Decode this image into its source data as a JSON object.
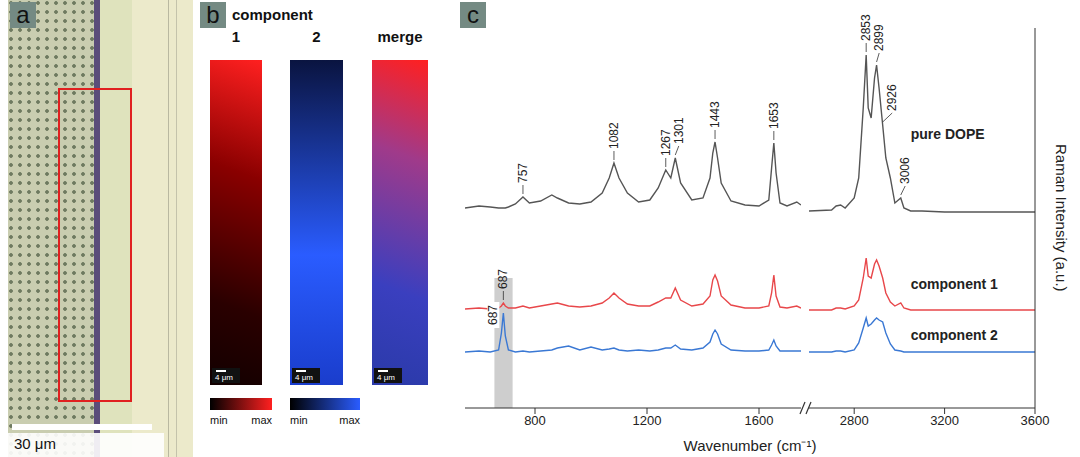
{
  "panel_a": {
    "letter": "a",
    "scale_bar": "30 μm"
  },
  "panel_b": {
    "letter": "b",
    "heading": "component",
    "maps": [
      {
        "label": "1",
        "color": "#ff2020"
      },
      {
        "label": "2",
        "color": "#2a5cff"
      },
      {
        "label": "merge"
      }
    ],
    "scale_bar": "4 μm",
    "colorbars": [
      {
        "color": "#ff2020",
        "min": "min",
        "max": "max"
      },
      {
        "color": "#2a5cff",
        "min": "min",
        "max": "max"
      }
    ]
  },
  "chart_data": {
    "letter": "c",
    "type": "line",
    "x_label": "Wavenumber (cm⁻¹)",
    "y_label": "Raman Intensity (a.u.)",
    "x_segments": [
      {
        "xlim": [
          550,
          1750
        ],
        "xticks": [
          800,
          1200,
          1600
        ]
      },
      {
        "xlim": [
          2600,
          3600
        ],
        "xticks": [
          2800,
          3200,
          3600
        ]
      }
    ],
    "ylim": [
      0,
      3.8
    ],
    "yticks": [],
    "tick_labels": "x",
    "x": [
      550,
      600,
      640,
      670,
      680,
      687,
      694,
      705,
      730,
      757,
      780,
      820,
      860,
      880,
      920,
      960,
      1000,
      1040,
      1065,
      1082,
      1100,
      1130,
      1170,
      1210,
      1240,
      1267,
      1285,
      1301,
      1320,
      1360,
      1400,
      1425,
      1435,
      1443,
      1452,
      1465,
      1500,
      1550,
      1600,
      1635,
      1645,
      1653,
      1661,
      1675,
      1700,
      1735,
      1750,
      2600,
      2700,
      2720,
      2740,
      2760,
      2800,
      2820,
      2840,
      2853,
      2862,
      2875,
      2890,
      2899,
      2910,
      2926,
      2940,
      2960,
      2980,
      3006,
      3020,
      3050,
      3100,
      3200,
      3300,
      3400,
      3500,
      3600
    ],
    "series": [
      {
        "name": "pure DOPE",
        "color": "#555555",
        "values": [
          2.0,
          2.02,
          2.01,
          2.0,
          2.0,
          2.0,
          2.0,
          2.01,
          2.04,
          2.11,
          2.05,
          2.07,
          2.13,
          2.1,
          2.05,
          2.04,
          2.06,
          2.15,
          2.3,
          2.45,
          2.3,
          2.15,
          2.06,
          2.08,
          2.2,
          2.38,
          2.3,
          2.5,
          2.25,
          2.08,
          2.1,
          2.3,
          2.55,
          2.66,
          2.5,
          2.25,
          2.07,
          2.03,
          2.02,
          2.08,
          2.4,
          2.65,
          2.35,
          2.05,
          2.02,
          2.06,
          2.03,
          1.97,
          1.98,
          2.02,
          2.03,
          2.0,
          2.1,
          2.3,
          3.0,
          3.53,
          3.0,
          2.9,
          3.3,
          3.43,
          3.2,
          2.83,
          2.5,
          2.3,
          2.05,
          2.1,
          2.0,
          1.97,
          1.97,
          1.96,
          1.96,
          1.96,
          1.96,
          1.96
        ]
      },
      {
        "name": "component 1",
        "color": "#e8474a",
        "values": [
          0.99,
          1.0,
          0.99,
          1.0,
          1.02,
          1.05,
          1.02,
          1.0,
          1.0,
          1.02,
          1.0,
          1.02,
          1.04,
          1.05,
          1.02,
          1.01,
          1.02,
          1.05,
          1.1,
          1.15,
          1.1,
          1.04,
          1.02,
          1.02,
          1.06,
          1.1,
          1.1,
          1.2,
          1.08,
          1.02,
          1.04,
          1.12,
          1.28,
          1.33,
          1.27,
          1.12,
          1.03,
          1.0,
          1.0,
          1.02,
          1.15,
          1.33,
          1.12,
          1.01,
          1.0,
          1.02,
          1.0,
          0.98,
          0.98,
          1.0,
          1.0,
          0.99,
          1.02,
          1.08,
          1.3,
          1.5,
          1.32,
          1.3,
          1.44,
          1.48,
          1.42,
          1.3,
          1.15,
          1.06,
          1.02,
          1.05,
          1.0,
          0.98,
          0.98,
          0.98,
          0.98,
          0.98,
          0.98,
          0.98
        ]
      },
      {
        "name": "component 2",
        "color": "#3a78d4",
        "values": [
          0.56,
          0.57,
          0.56,
          0.58,
          0.75,
          0.95,
          0.72,
          0.58,
          0.56,
          0.57,
          0.56,
          0.57,
          0.58,
          0.6,
          0.62,
          0.58,
          0.61,
          0.58,
          0.59,
          0.6,
          0.58,
          0.57,
          0.58,
          0.57,
          0.58,
          0.6,
          0.6,
          0.63,
          0.59,
          0.58,
          0.6,
          0.66,
          0.74,
          0.78,
          0.74,
          0.64,
          0.58,
          0.57,
          0.57,
          0.58,
          0.63,
          0.68,
          0.62,
          0.57,
          0.57,
          0.57,
          0.57,
          0.56,
          0.56,
          0.57,
          0.57,
          0.56,
          0.58,
          0.65,
          0.8,
          0.9,
          0.82,
          0.84,
          0.88,
          0.9,
          0.88,
          0.86,
          0.75,
          0.64,
          0.58,
          0.57,
          0.56,
          0.56,
          0.56,
          0.56,
          0.56,
          0.56,
          0.56,
          0.56
        ]
      }
    ],
    "annotations": [
      {
        "text": "757",
        "x": 757,
        "series": "pure DOPE"
      },
      {
        "text": "1082",
        "x": 1082,
        "series": "pure DOPE"
      },
      {
        "text": "1267",
        "x": 1267,
        "series": "pure DOPE"
      },
      {
        "text": "1301",
        "x": 1301,
        "series": "pure DOPE"
      },
      {
        "text": "1443",
        "x": 1443,
        "series": "pure DOPE"
      },
      {
        "text": "1653",
        "x": 1653,
        "series": "pure DOPE"
      },
      {
        "text": "2853",
        "x": 2853,
        "series": "pure DOPE"
      },
      {
        "text": "2899",
        "x": 2899,
        "series": "pure DOPE"
      },
      {
        "text": "2926",
        "x": 2926,
        "series": "pure DOPE"
      },
      {
        "text": "3006",
        "x": 3006,
        "series": "pure DOPE"
      },
      {
        "text": "687",
        "x": 687,
        "series": "component 1"
      },
      {
        "text": "687",
        "x": 687,
        "series": "component 2"
      }
    ],
    "highlight": {
      "x": [
        655,
        720
      ],
      "y": [
        0,
        1.3
      ]
    }
  }
}
